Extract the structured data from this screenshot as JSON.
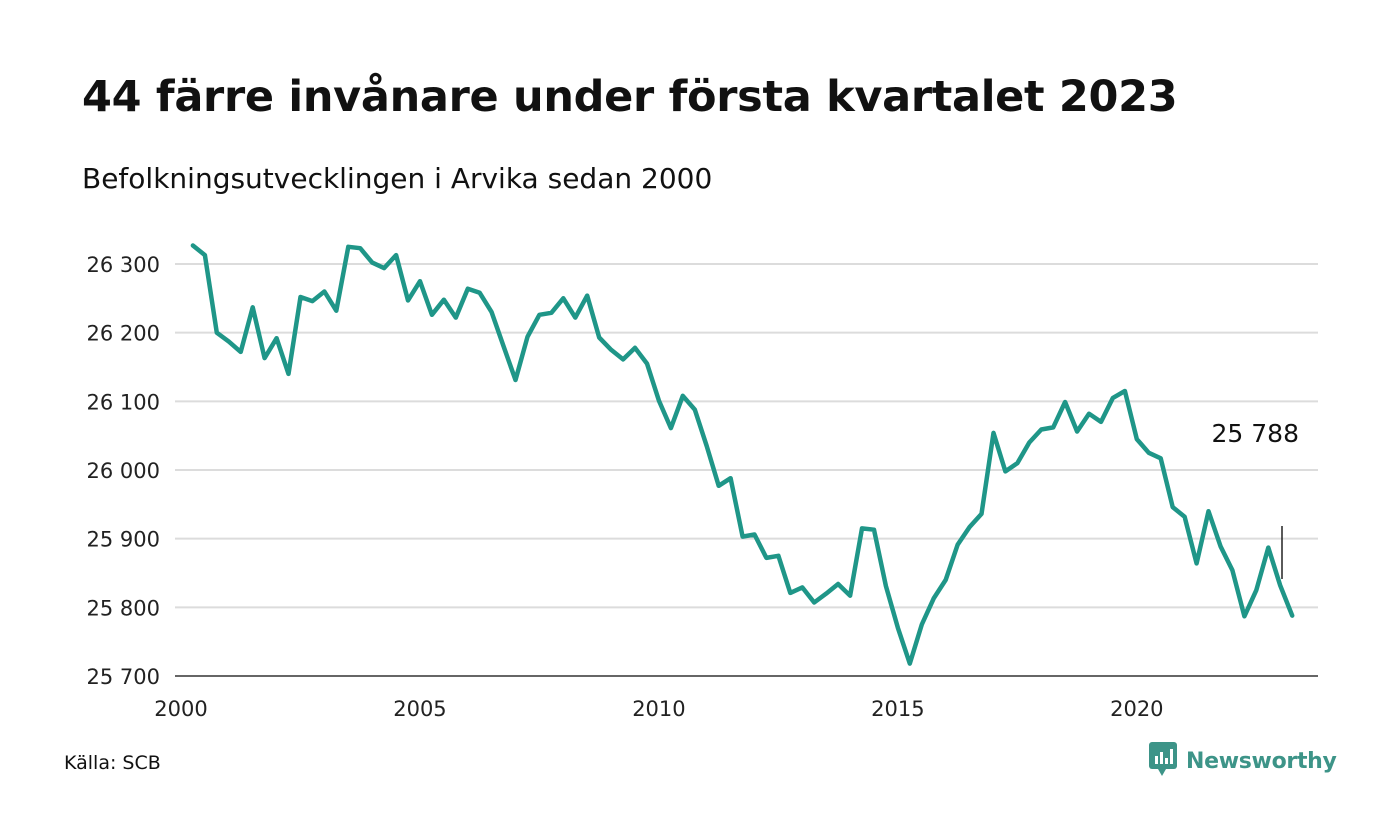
{
  "title": "44 färre invånare under första kvartalet 2023",
  "subtitle": "Befolkningsutvecklingen i Arvika sedan 2000",
  "source": "Källa: SCB",
  "brand": {
    "name": "Newsworthy",
    "color": "#3d9488",
    "icon": "newsworthy-logo-icon"
  },
  "chart_data": {
    "type": "line",
    "title": "44 färre invånare under första kvartalet 2023",
    "subtitle": "Befolkningsutvecklingen i Arvika sedan 2000",
    "xlabel": "",
    "ylabel": "",
    "xlim": [
      2000,
      2023.6
    ],
    "ylim": [
      25700,
      26330
    ],
    "y_ticks": [
      25700,
      25800,
      25900,
      26000,
      26100,
      26200,
      26300
    ],
    "y_tick_labels": [
      "25 700",
      "25 800",
      "25 900",
      "26 000",
      "26 100",
      "26 200",
      "26 300"
    ],
    "x_ticks": [
      2000,
      2005,
      2010,
      2015,
      2020
    ],
    "x_tick_labels": [
      "2000",
      "2005",
      "2010",
      "2015",
      "2020"
    ],
    "grid": "horizontal",
    "line_color": "#1f9688",
    "annotation": {
      "label": "25 788",
      "x": 2023.25,
      "value": 25788
    },
    "series": [
      {
        "x": [
          2000.25,
          2000.5,
          2000.75,
          2001,
          2001.25,
          2001.5,
          2001.75,
          2002,
          2002.25,
          2002.5,
          2002.75,
          2003,
          2003.25,
          2003.5,
          2003.75,
          2004,
          2004.25,
          2004.5,
          2004.75,
          2005,
          2005.25,
          2005.5,
          2005.75,
          2006,
          2006.25,
          2006.5,
          2006.75,
          2007,
          2007.25,
          2007.5,
          2007.75,
          2008,
          2008.25,
          2008.5,
          2008.75,
          2009,
          2009.25,
          2009.5,
          2009.75,
          2010,
          2010.25,
          2010.5,
          2010.75,
          2011,
          2011.25,
          2011.5,
          2011.75,
          2012,
          2012.25,
          2012.5,
          2012.75,
          2013,
          2013.25,
          2013.5,
          2013.75,
          2014,
          2014.25,
          2014.5,
          2014.75,
          2015,
          2015.25,
          2015.5,
          2015.75,
          2016,
          2016.25,
          2016.5,
          2016.75,
          2017,
          2017.25,
          2017.5,
          2017.75,
          2018,
          2018.25,
          2018.5,
          2018.75,
          2019,
          2019.25,
          2019.5,
          2019.75,
          2020,
          2020.25,
          2020.5,
          2020.75,
          2021,
          2021.25,
          2021.5,
          2021.75,
          2022,
          2022.25,
          2022.5,
          2022.75,
          2023,
          2023.25
        ],
        "values": [
          26327,
          26313,
          26200,
          26187,
          26172,
          26237,
          26163,
          26192,
          26140,
          26252,
          26246,
          26260,
          26232,
          26325,
          26323,
          26302,
          26294,
          26313,
          26247,
          26275,
          26226,
          26248,
          26222,
          26264,
          26258,
          26230,
          26180,
          26131,
          26194,
          26226,
          26229,
          26250,
          26222,
          26254,
          26193,
          26175,
          26161,
          26178,
          26155,
          26101,
          26061,
          26108,
          26088,
          26035,
          25977,
          25988,
          25903,
          25906,
          25872,
          25875,
          25821,
          25829,
          25807,
          25820,
          25834,
          25817,
          25915,
          25913,
          25831,
          25770,
          25718,
          25775,
          25813,
          25840,
          25891,
          25917,
          25936,
          26054,
          25998,
          26010,
          26040,
          26059,
          26062,
          26099,
          26056,
          26082,
          26070,
          26105,
          26115,
          26045,
          26025,
          26017,
          25946,
          25932,
          25864,
          25940,
          25889,
          25854,
          25787,
          25825,
          25887,
          25832,
          25788
        ]
      }
    ]
  }
}
